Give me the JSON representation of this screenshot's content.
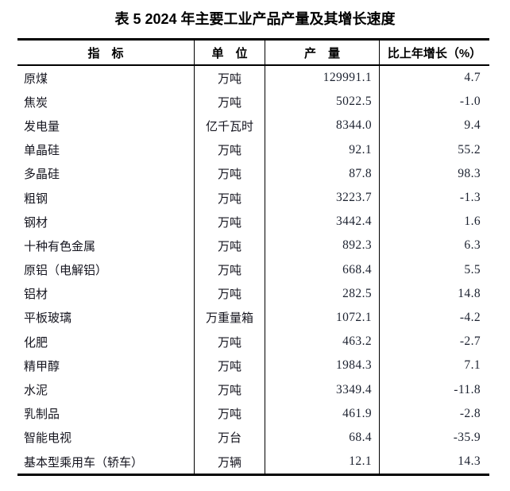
{
  "title": "表 5  2024 年主要工业产品产量及其增长速度",
  "table": {
    "headers": [
      "指　标",
      "单　位",
      "产　量",
      "比上年增长（%）"
    ],
    "rows": [
      {
        "indicator": "原煤",
        "unit": "万吨",
        "output": "129991.1",
        "growth": "4.7"
      },
      {
        "indicator": "焦炭",
        "unit": "万吨",
        "output": "5022.5",
        "growth": "-1.0"
      },
      {
        "indicator": "发电量",
        "unit": "亿千瓦时",
        "output": "8344.0",
        "growth": "9.4"
      },
      {
        "indicator": "单晶硅",
        "unit": "万吨",
        "output": "92.1",
        "growth": "55.2"
      },
      {
        "indicator": "多晶硅",
        "unit": "万吨",
        "output": "87.8",
        "growth": "98.3"
      },
      {
        "indicator": "粗钢",
        "unit": "万吨",
        "output": "3223.7",
        "growth": "-1.3"
      },
      {
        "indicator": "钢材",
        "unit": "万吨",
        "output": "3442.4",
        "growth": "1.6"
      },
      {
        "indicator": "十种有色金属",
        "unit": "万吨",
        "output": "892.3",
        "growth": "6.3"
      },
      {
        "indicator": "原铝（电解铝）",
        "unit": "万吨",
        "output": "668.4",
        "growth": "5.5"
      },
      {
        "indicator": "铝材",
        "unit": "万吨",
        "output": "282.5",
        "growth": "14.8"
      },
      {
        "indicator": "平板玻璃",
        "unit": "万重量箱",
        "output": "1072.1",
        "growth": "-4.2"
      },
      {
        "indicator": "化肥",
        "unit": "万吨",
        "output": "463.2",
        "growth": "-2.7"
      },
      {
        "indicator": "精甲醇",
        "unit": "万吨",
        "output": "1984.3",
        "growth": "7.1"
      },
      {
        "indicator": "水泥",
        "unit": "万吨",
        "output": "3349.4",
        "growth": "-11.8"
      },
      {
        "indicator": "乳制品",
        "unit": "万吨",
        "output": "461.9",
        "growth": "-2.8"
      },
      {
        "indicator": "智能电视",
        "unit": "万台",
        "output": "68.4",
        "growth": "-35.9"
      },
      {
        "indicator": "基本型乘用车（轿车）",
        "unit": "万辆",
        "output": "12.1",
        "growth": "14.3"
      }
    ]
  }
}
